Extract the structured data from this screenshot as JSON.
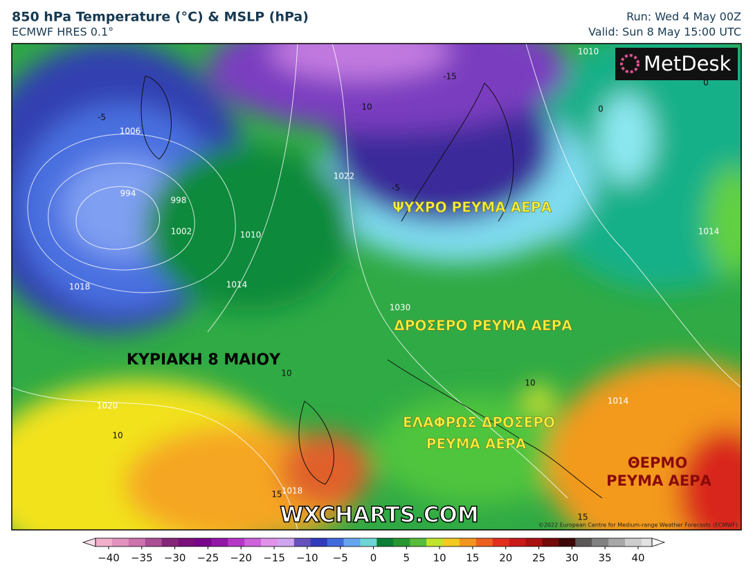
{
  "header": {
    "title": "850 hPa Temperature (°C) & MSLP (hPa)",
    "subtitle": "ECMWF HRES 0.1°",
    "run": "Run: Wed 4 May 00Z",
    "valid": "Valid: Sun 8 May 15:00 UTC"
  },
  "map": {
    "annotations": [
      "ΨΥΧΡΟ ΡΕΥΜΑ ΑΕΡΑ",
      "ΔΡΟΣΕΡΟ ΡΕΥΜΑ ΑΕΡΑ",
      "ΕΛΑΦΡΩΣ ΔΡΟΣΕΡΟ",
      "ΡΕΥΜΑ ΑΕΡΑ"
    ],
    "warm_annotation": [
      "ΘΕΡΜΟ",
      "ΡΕΥΜΑ ΑΕΡΑ"
    ],
    "date_label": "ΚΥΡΙΑΚΗ 8 ΜΑΙΟΥ",
    "watermark": "WXCHARTS.COM",
    "logo": "MetDesk",
    "copyright": "©2022 European Centre for Medium-range Weather Forecasts (ECMWF)",
    "isobar_labels": [
      "994",
      "998",
      "1002",
      "1006",
      "1010",
      "1014",
      "1018",
      "1022",
      "1020",
      "1030",
      "1014",
      "1010",
      "1014",
      "1018"
    ],
    "isotherm_labels": [
      "-15",
      "10",
      "-5",
      "0",
      "10",
      "10",
      "10",
      "15",
      "15",
      "-5",
      "0"
    ]
  },
  "colorbar": {
    "lim": [
      -40,
      40
    ],
    "ticks": [
      {
        "value": -40,
        "label": "−40"
      },
      {
        "value": -35,
        "label": "−35"
      },
      {
        "value": -30,
        "label": "−30"
      },
      {
        "value": -25,
        "label": "−25"
      },
      {
        "value": -20,
        "label": "−20"
      },
      {
        "value": -15,
        "label": "−15"
      },
      {
        "value": -10,
        "label": "−10"
      },
      {
        "value": -5,
        "label": "−5"
      },
      0,
      5,
      10,
      15,
      20,
      25,
      30,
      35,
      40
    ]
  }
}
